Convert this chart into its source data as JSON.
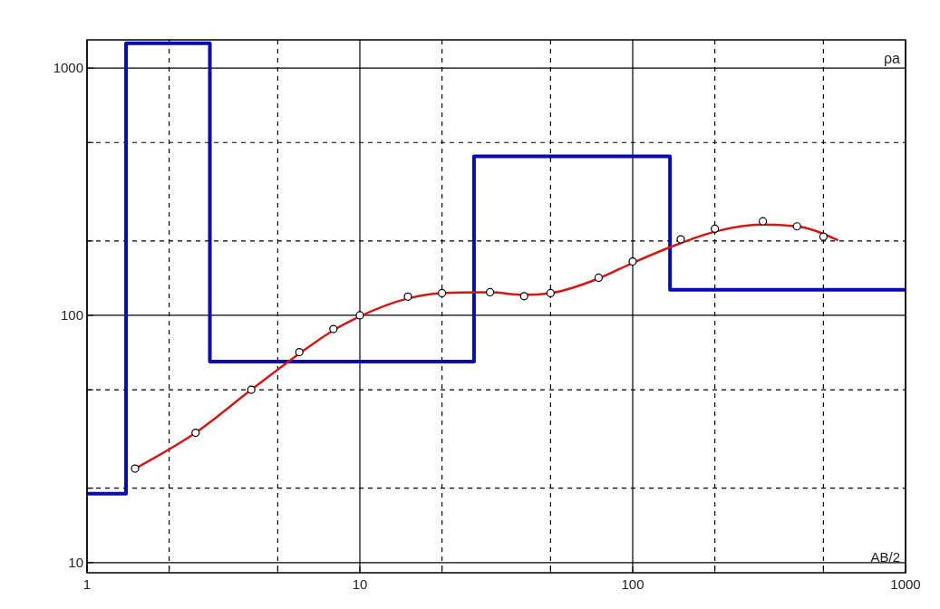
{
  "chart_data": {
    "type": "line",
    "xlabel": "AB/2",
    "ylabel": "ρa",
    "log": "xy",
    "grid": true,
    "xlim": [
      1,
      1000
    ],
    "ylim": [
      9.1,
      1300
    ],
    "xticks": [
      1,
      {
        "value": 2,
        "label": null
      },
      {
        "value": 5,
        "label": null
      },
      10,
      {
        "value": 20,
        "label": null
      },
      {
        "value": 50,
        "label": null
      },
      100,
      {
        "value": 200,
        "label": null
      },
      {
        "value": 500,
        "label": null
      },
      1000
    ],
    "yticks": [
      10,
      {
        "value": 20,
        "label": null
      },
      {
        "value": 50,
        "label": null
      },
      100,
      {
        "value": 200,
        "label": null
      },
      {
        "value": 500,
        "label": null
      },
      1000
    ],
    "series": [
      {
        "type": "step",
        "color": "#0a0ab4",
        "x": [
          1,
          1.39,
          2.82,
          26.2,
          137,
          1000
        ],
        "values": [
          19,
          1260,
          65,
          440,
          127,
          127
        ]
      },
      {
        "color": "#d01818",
        "x": [
          1.5,
          2.5,
          4,
          6,
          8,
          10,
          15,
          20,
          30,
          40,
          50,
          75,
          100,
          150,
          200,
          300,
          400,
          566
        ],
        "values": [
          24,
          33.5,
          50,
          70,
          87,
          99,
          117,
          123,
          124,
          121,
          123,
          141,
          163,
          196,
          218,
          233,
          229,
          201
        ]
      },
      {
        "type": "scatter",
        "color": "#000000",
        "marker": "circle",
        "x": [
          1.5,
          2.5,
          4,
          6,
          8,
          10,
          15,
          20,
          30,
          40,
          50,
          75,
          100,
          150,
          200,
          300,
          400,
          500
        ],
        "values": [
          24,
          33.5,
          50,
          71,
          88,
          100,
          119,
          123,
          124,
          119.5,
          123,
          142,
          165,
          203,
          224,
          240,
          229,
          208
        ]
      }
    ]
  }
}
